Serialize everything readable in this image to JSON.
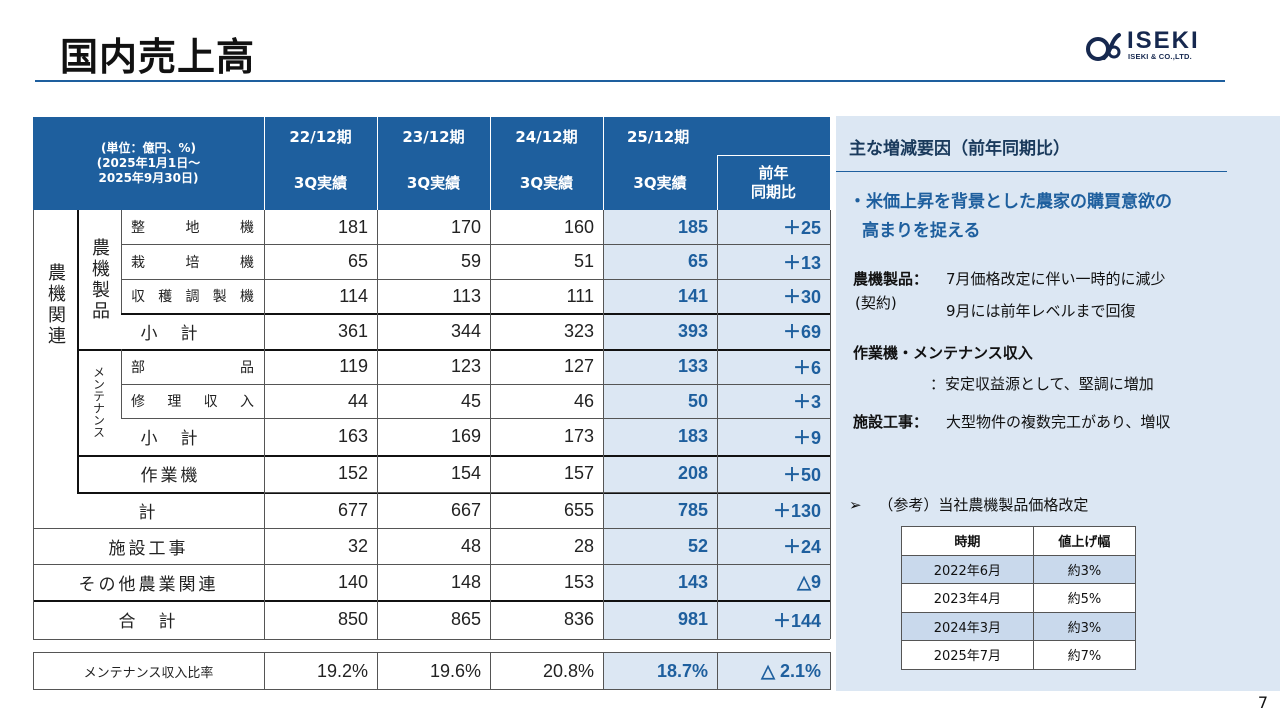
{
  "title": "国内売上高",
  "logo": {
    "word": "ISEKI",
    "sub": "ISEKI & CO.,LTD.",
    "mark_icon": "iseki-logo-mark"
  },
  "page_number": "7",
  "table": {
    "unit_note": [
      "(単位：億円、%)",
      "(2025年1月1日～",
      "2025年9月30日)"
    ],
    "periods": [
      "22/12期",
      "23/12期",
      "24/12期",
      "25/12期"
    ],
    "sub_header": [
      "3Q実績",
      "3Q実績",
      "3Q実績",
      "3Q実績"
    ],
    "yoy_header": [
      "前年",
      "同期比"
    ],
    "group_nouki": "農機関連",
    "group_seihin": "農機製品",
    "group_mainte": "メンテナンス",
    "rows": [
      {
        "label": "整地機",
        "v": [
          "181",
          "170",
          "160",
          "185"
        ],
        "yoy": "＋25"
      },
      {
        "label": "栽培機",
        "v": [
          "65",
          "59",
          "51",
          "65"
        ],
        "yoy": "＋13"
      },
      {
        "label": "収穫調製機",
        "v": [
          "114",
          "113",
          "111",
          "141"
        ],
        "yoy": "＋30"
      },
      {
        "label": "小　計",
        "v": [
          "361",
          "344",
          "323",
          "393"
        ],
        "yoy": "＋69"
      },
      {
        "label": "部品",
        "v": [
          "119",
          "123",
          "127",
          "133"
        ],
        "yoy": "＋6"
      },
      {
        "label": "修理収入",
        "v": [
          "44",
          "45",
          "46",
          "50"
        ],
        "yoy": "＋3"
      },
      {
        "label": "小　計",
        "v": [
          "163",
          "169",
          "173",
          "183"
        ],
        "yoy": "＋9"
      },
      {
        "label": "作業機",
        "v": [
          "152",
          "154",
          "157",
          "208"
        ],
        "yoy": "＋50"
      },
      {
        "label": "計",
        "v": [
          "677",
          "667",
          "655",
          "785"
        ],
        "yoy": "＋130"
      },
      {
        "label": "施設工事",
        "v": [
          "32",
          "48",
          "28",
          "52"
        ],
        "yoy": "＋24"
      },
      {
        "label": "その他農業関連",
        "v": [
          "140",
          "148",
          "153",
          "143"
        ],
        "yoy": "△9"
      },
      {
        "label": "合　計",
        "v": [
          "850",
          "865",
          "836",
          "981"
        ],
        "yoy": "＋144"
      }
    ],
    "ratio_row": {
      "label": "メンテナンス収入比率",
      "v": [
        "19.2%",
        "19.6%",
        "20.8%",
        "18.7%"
      ],
      "yoy": "△ 2.1%"
    }
  },
  "panel": {
    "heading": "主な増減要因（前年同期比）",
    "main_point_1": "・米価上昇を背景とした農家の購買意欲の",
    "main_point_2": "高まりを捉える",
    "seihin_label": "農機製品：",
    "seihin_sub": "(契約)",
    "seihin_text_1": "7月価格改定に伴い一時的に減少",
    "seihin_text_2": "9月には前年レベルまで回復",
    "sagyo_label": "作業機・メンテナンス収入",
    "sagyo_text": "：安定収益源として、堅調に増加",
    "shisetsu_label": "施設工事：",
    "shisetsu_text": "大型物件の複数完工があり、増収",
    "ref_marker": "➢",
    "ref_title": "（参考）当社農機製品価格改定",
    "price_table": {
      "headers": [
        "時期",
        "値上げ幅"
      ],
      "rows": [
        [
          "2022年6月",
          "約3%"
        ],
        [
          "2023年4月",
          "約5%"
        ],
        [
          "2024年3月",
          "約3%"
        ],
        [
          "2025年7月",
          "約7%"
        ]
      ]
    }
  },
  "colors": {
    "accent": "#1e5f9e",
    "shade": "#dce7f3",
    "logo": "#16284f"
  }
}
